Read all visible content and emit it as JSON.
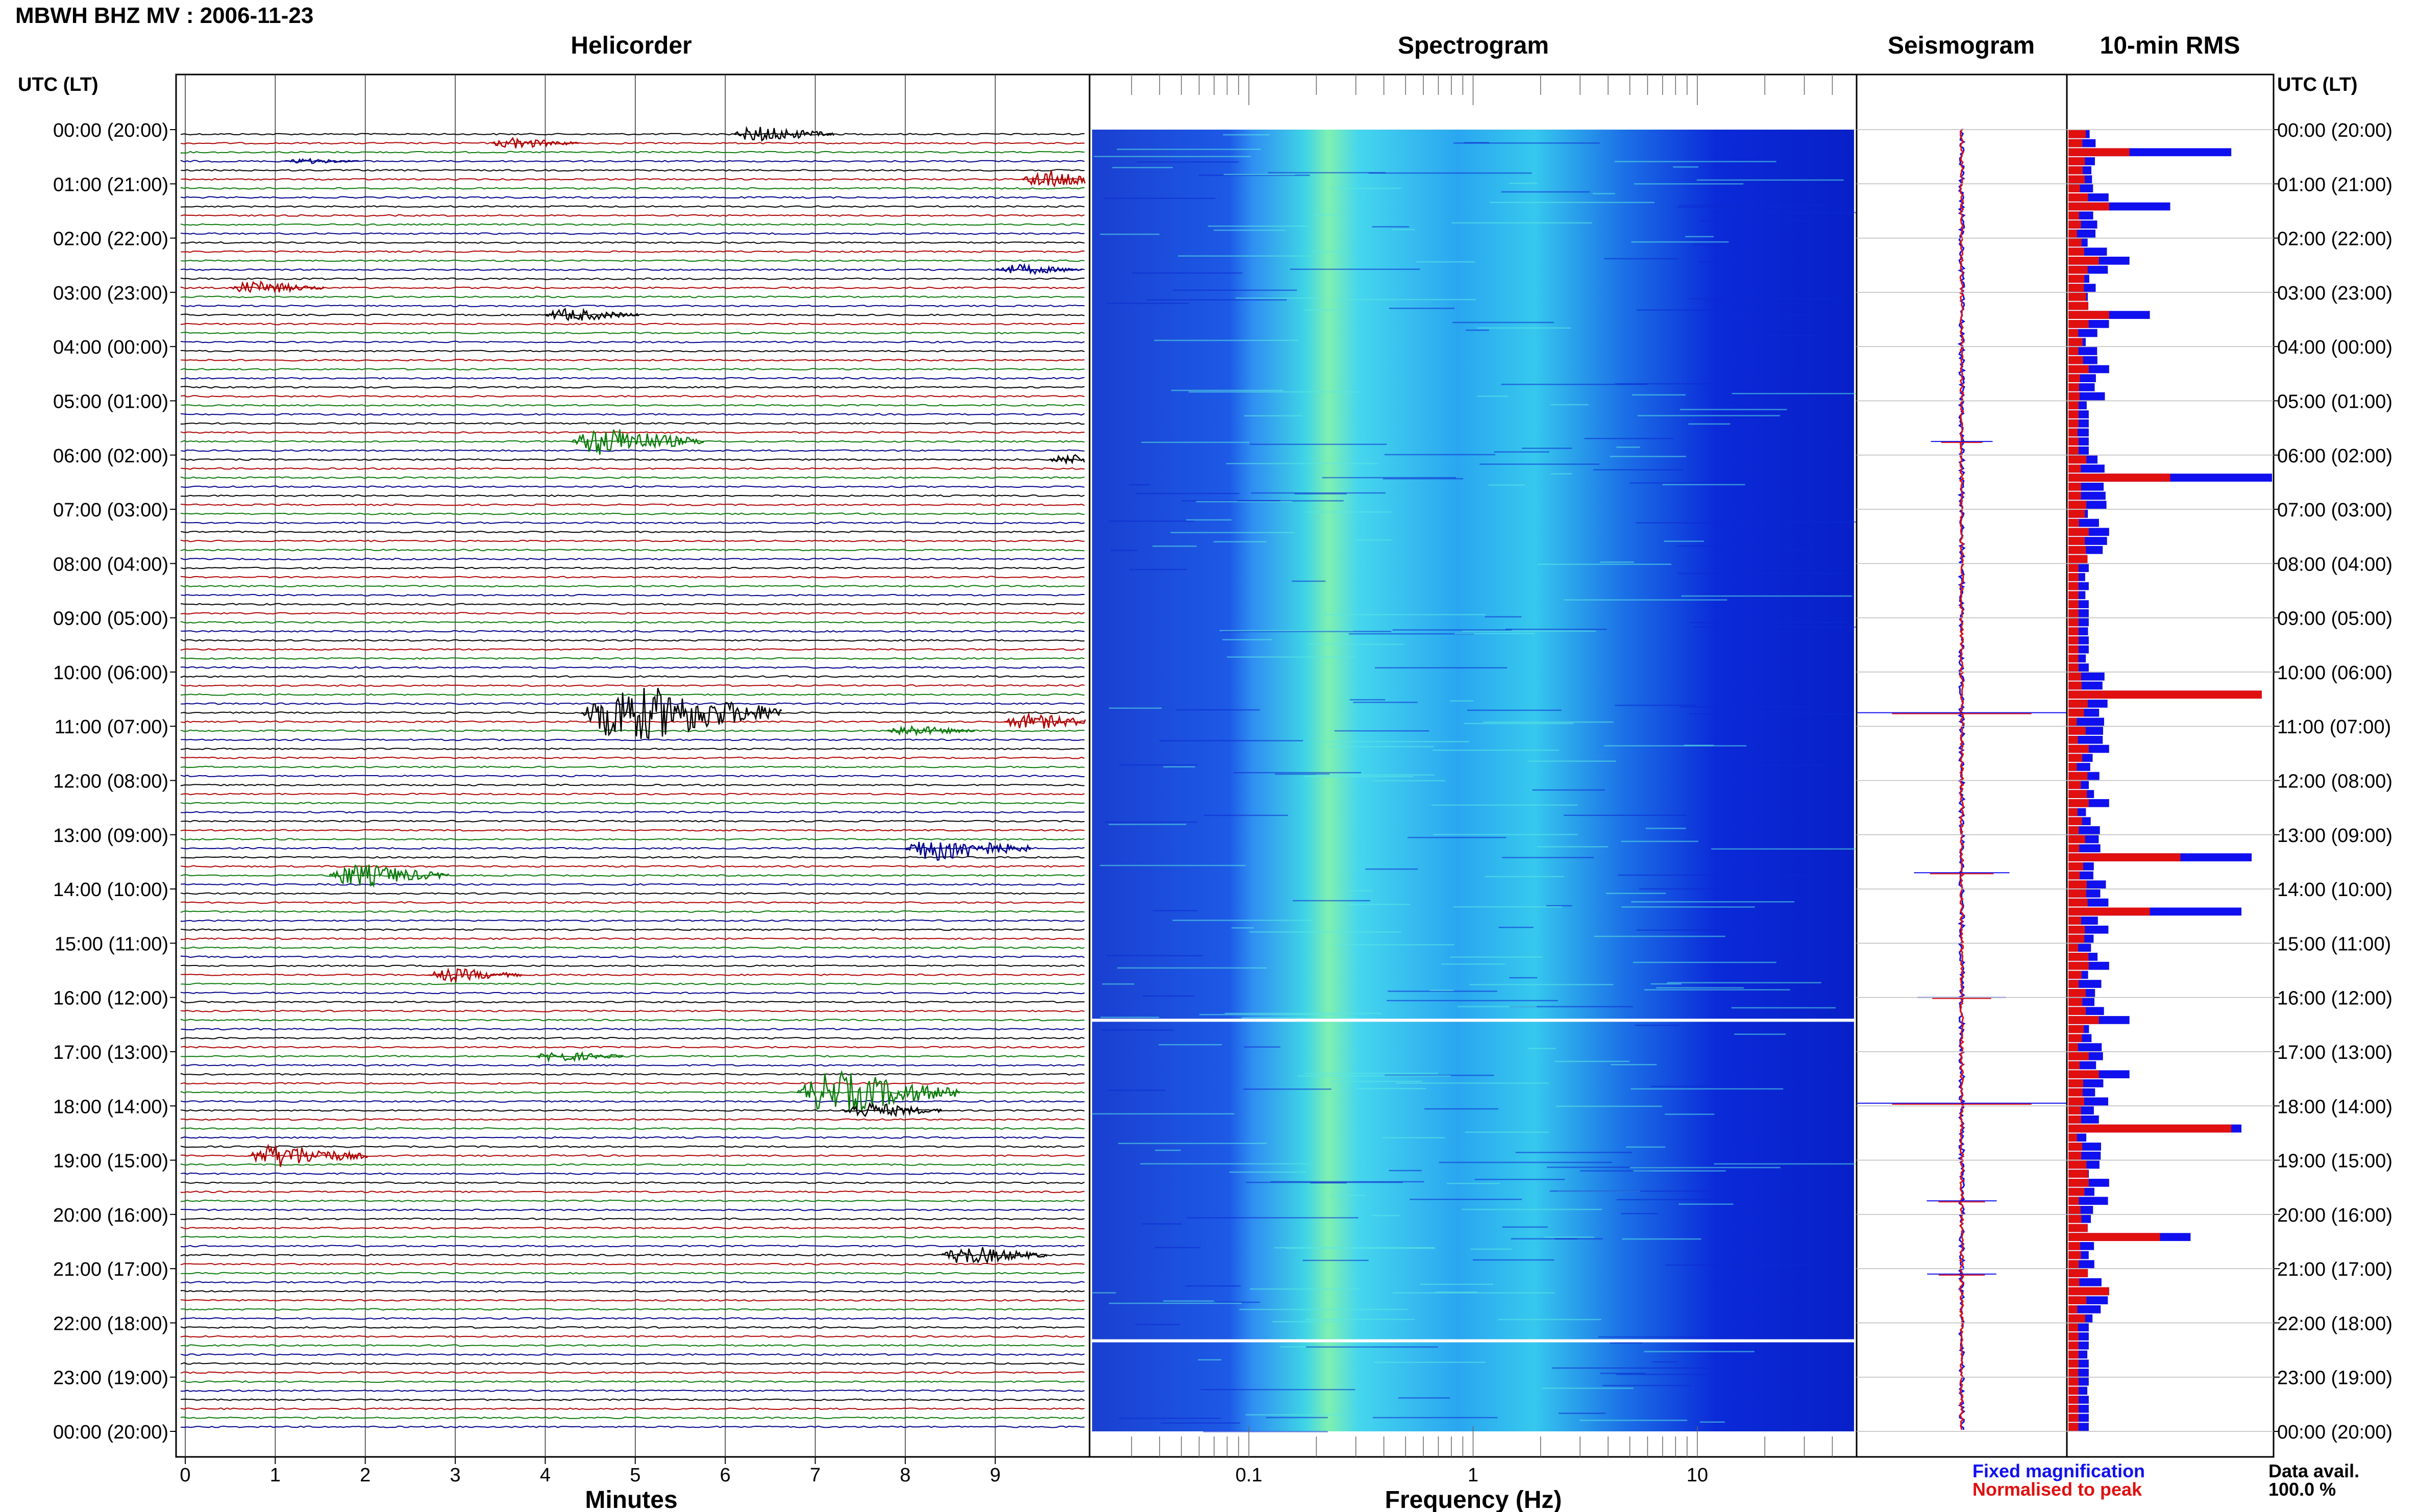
{
  "station": "MBWH BHZ MV : 2006-11-23",
  "panels": {
    "helicorder": "Helicorder",
    "spectrogram": "Spectrogram",
    "seismogram": "Seismogram",
    "rms": "10-min RMS"
  },
  "time_axis_label": "UTC (LT)",
  "time_labels": [
    "00:00 (20:00)",
    "01:00 (21:00)",
    "02:00 (22:00)",
    "03:00 (23:00)",
    "04:00 (00:00)",
    "05:00 (01:00)",
    "06:00 (02:00)",
    "07:00 (03:00)",
    "08:00 (04:00)",
    "09:00 (05:00)",
    "10:00 (06:00)",
    "11:00 (07:00)",
    "12:00 (08:00)",
    "13:00 (09:00)",
    "14:00 (10:00)",
    "15:00 (11:00)",
    "16:00 (12:00)",
    "17:00 (13:00)",
    "18:00 (14:00)",
    "19:00 (15:00)",
    "20:00 (16:00)",
    "21:00 (17:00)",
    "22:00 (18:00)",
    "23:00 (19:00)",
    "00:00 (20:00)"
  ],
  "minutes_axis": {
    "label": "Minutes",
    "ticks": [
      "0",
      "1",
      "2",
      "3",
      "4",
      "5",
      "6",
      "7",
      "8",
      "9"
    ]
  },
  "frequency_axis": {
    "label": "Frequency (Hz)",
    "ticks": [
      "0.1",
      "1",
      "10"
    ]
  },
  "legend": {
    "fixed": "Fixed magnification",
    "normalised": "Normalised to peak",
    "fixed_color": "#1010ee",
    "normalised_color": "#e01010"
  },
  "data_availability": {
    "label": "Data avail.",
    "value": "100.0 %"
  },
  "colors": {
    "trace_cycle": [
      "#000000",
      "#b00000",
      "#0a7a0a",
      "#00008b"
    ],
    "rms_fixed": "#1010ee",
    "rms_normalised": "#e01010"
  },
  "chart_data": [
    {
      "type": "heatmap",
      "title": "Helicorder",
      "xlabel": "Minutes",
      "xlim": [
        0,
        10
      ],
      "row_interval_minutes": 10,
      "rows": 144,
      "events": [
        {
          "row": 0,
          "minute": 6.1,
          "amplitude": 0.6
        },
        {
          "row": 1,
          "minute": 3.4,
          "amplitude": 0.4
        },
        {
          "row": 3,
          "minute": 1.1,
          "amplitude": 0.2
        },
        {
          "row": 5,
          "minute": 9.3,
          "amplitude": 0.7
        },
        {
          "row": 15,
          "minute": 9.0,
          "amplitude": 0.4
        },
        {
          "row": 17,
          "minute": 0.5,
          "amplitude": 0.5
        },
        {
          "row": 20,
          "minute": 4.0,
          "amplitude": 0.5
        },
        {
          "row": 34,
          "minute": 4.3,
          "amplitude": 1.1
        },
        {
          "row": 36,
          "minute": 9.6,
          "amplitude": 0.4
        },
        {
          "row": 64,
          "minute": 4.4,
          "amplitude": 2.2
        },
        {
          "row": 65,
          "minute": 9.1,
          "amplitude": 0.6
        },
        {
          "row": 66,
          "minute": 7.8,
          "amplitude": 0.4
        },
        {
          "row": 79,
          "minute": 8.0,
          "amplitude": 1.0
        },
        {
          "row": 82,
          "minute": 1.6,
          "amplitude": 0.9
        },
        {
          "row": 93,
          "minute": 2.7,
          "amplitude": 0.5
        },
        {
          "row": 102,
          "minute": 3.9,
          "amplitude": 0.4
        },
        {
          "row": 106,
          "minute": 6.8,
          "amplitude": 1.6
        },
        {
          "row": 108,
          "minute": 7.3,
          "amplitude": 0.6
        },
        {
          "row": 113,
          "minute": 0.7,
          "amplitude": 0.9
        },
        {
          "row": 124,
          "minute": 8.4,
          "amplitude": 0.7
        }
      ]
    },
    {
      "type": "heatmap",
      "title": "Spectrogram",
      "xlabel": "Frequency (Hz)",
      "x_scale": "log",
      "xlim": [
        0.02,
        50
      ],
      "ylim_utc_hours": [
        0,
        24
      ],
      "dominant_band_hz": [
        0.2,
        0.35
      ],
      "gaps_utc": [
        "16:25",
        "22:20"
      ]
    },
    {
      "type": "line",
      "title": "Seismogram",
      "ylim_utc_hours": [
        0,
        24
      ],
      "spikes_utc_hours": [
        5.75,
        10.75,
        13.7,
        16.0,
        17.95,
        19.75,
        21.1
      ]
    },
    {
      "type": "bar",
      "title": "10-min RMS",
      "series": [
        {
          "name": "Fixed magnification",
          "values_by_hour": [
            0.8,
            0.5,
            0.3,
            0.4,
            0.2,
            0.1,
            1.0,
            0.2,
            0.1,
            0.1,
            0.95,
            0.2,
            0.2,
            0.9,
            0.85,
            0.2,
            0.3,
            0.3,
            0.85,
            0.2,
            0.6,
            0.2,
            0.1,
            0.1
          ]
        },
        {
          "name": "Normalised to peak",
          "values_by_hour": [
            0.3,
            0.2,
            0.15,
            0.2,
            0.1,
            0.05,
            0.5,
            0.1,
            0.05,
            0.05,
            0.95,
            0.1,
            0.1,
            0.55,
            0.4,
            0.1,
            0.15,
            0.15,
            0.8,
            0.1,
            0.45,
            0.2,
            0.05,
            0.05
          ]
        }
      ]
    }
  ]
}
